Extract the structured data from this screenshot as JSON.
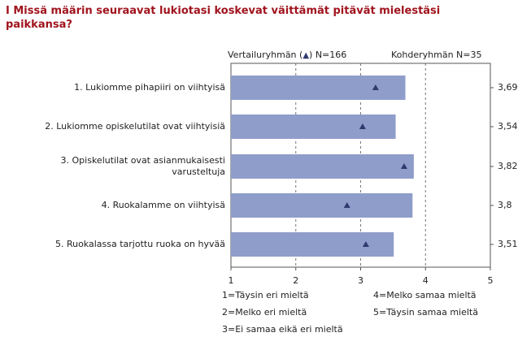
{
  "title": "I Missä määrin seuraavat lukiotasi koskevat väittämät pitävät mielestäsi paikkansa?",
  "headers": {
    "comparison_prefix": "Vertailuryhmän (",
    "comparison_suffix": ") N=166",
    "target": "Kohderyhmän N=35"
  },
  "colors": {
    "bar": "#8f9dcb",
    "marker": "#2e3a6e",
    "title": "#a0141e"
  },
  "chart_data": {
    "type": "bar",
    "orientation": "horizontal",
    "xlim": [
      1,
      5
    ],
    "ticks": [
      "1",
      "2",
      "3",
      "4",
      "5"
    ],
    "gridlines": [
      2,
      3,
      4
    ],
    "items": [
      {
        "label": "1. Lukiomme pihapiiri on viihtyisä",
        "value": 3.69,
        "value_label": "3,69",
        "comparison": 3.23
      },
      {
        "label": "2. Lukiomme opiskelutilat ovat viihtyisiä",
        "value": 3.54,
        "value_label": "3,54",
        "comparison": 3.03
      },
      {
        "label": "3. Opiskelutilat ovat asianmukaisesti varusteltuja",
        "value": 3.82,
        "value_label": "3,82",
        "comparison": 3.67
      },
      {
        "label": "4. Ruokalamme on viihtyisä",
        "value": 3.8,
        "value_label": "3,8",
        "comparison": 2.79
      },
      {
        "label": "5. Ruokalassa tarjottu ruoka on hyvää",
        "value": 3.51,
        "value_label": "3,51",
        "comparison": 3.08
      }
    ],
    "legend": [
      "1=Täysin eri mieltä",
      "2=Melko eri mieltä",
      "3=Ei samaa eikä eri mieltä",
      "4=Melko samaa mieltä",
      "5=Täysin samaa mieltä"
    ]
  }
}
